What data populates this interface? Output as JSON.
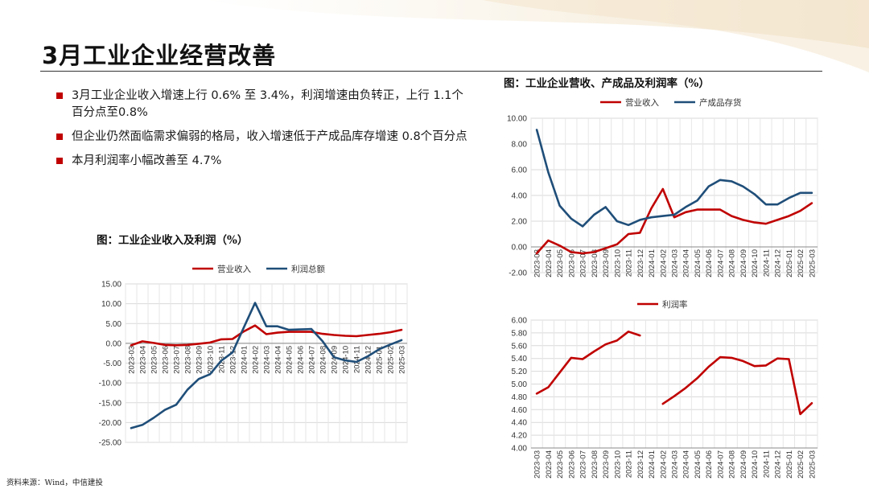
{
  "title": "3月工业企业经营改善",
  "bullets": [
    "3月工业企业收入增速上行 0.6% 至 3.4%，利润增速由负转正，上行 1.1个百分点至0.8%",
    "但企业仍然面临需求偏弱的格局，收入增速低于产成品库存增速 0.8个百分点",
    "本月利润率小幅改善至 4.7%"
  ],
  "source": "资料来源：Wind，中信建投",
  "colors": {
    "red": "#c00000",
    "navy": "#1f4e79",
    "bullet": "#c00000",
    "grid": "#d9d9d9"
  },
  "chart_data": [
    {
      "type": "line",
      "title": "图：工业企业收入及利润（%）",
      "x": [
        "2023-03",
        "2023-04",
        "2023-05",
        "2023-06",
        "2023-07",
        "2023-08",
        "2023-09",
        "2023-10",
        "2023-11",
        "2023-12",
        "2024-01",
        "2024-02",
        "2024-03",
        "2024-04",
        "2024-05",
        "2024-06",
        "2024-07",
        "2024-08",
        "2024-09",
        "2024-10",
        "2024-11",
        "2024-12",
        "2025-01",
        "2025-02",
        "2025-03"
      ],
      "ylim": [
        -25,
        15
      ],
      "yticks": [
        "15.00",
        "10.00",
        "5.00",
        "0.00",
        "-5.00",
        "-10.00",
        "-15.00",
        "-20.00",
        "-25.00"
      ],
      "grid": true,
      "legend": "top",
      "series": [
        {
          "name": "营业收入",
          "color": "#c00000",
          "values": [
            -0.5,
            0.5,
            0.1,
            -0.4,
            -0.5,
            -0.4,
            -0.1,
            0.2,
            1.0,
            1.1,
            3.0,
            4.5,
            2.3,
            2.7,
            2.9,
            2.9,
            2.9,
            2.4,
            2.1,
            1.9,
            1.8,
            2.1,
            2.4,
            2.8,
            3.4
          ]
        },
        {
          "name": "利润总额",
          "color": "#1f4e79",
          "values": [
            -21.4,
            -20.6,
            -18.8,
            -16.8,
            -15.5,
            -11.7,
            -9.0,
            -7.8,
            -4.4,
            -2.3,
            4.0,
            10.2,
            4.3,
            4.3,
            3.4,
            3.5,
            3.6,
            0.5,
            -3.5,
            -4.3,
            -4.7,
            -3.3,
            -1.5,
            -0.3,
            0.8
          ]
        }
      ]
    },
    {
      "type": "line",
      "title": "图：工业企业营收、产成品及利润率（%）",
      "x": [
        "2023-03",
        "2023-04",
        "2023-05",
        "2023-06",
        "2023-07",
        "2023-08",
        "2023-09",
        "2023-10",
        "2023-11",
        "2023-12",
        "2024-01",
        "2024-02",
        "2024-03",
        "2024-04",
        "2024-05",
        "2024-06",
        "2024-07",
        "2024-08",
        "2024-09",
        "2024-10",
        "2024-11",
        "2024-12",
        "2025-01",
        "2025-02",
        "2025-03"
      ],
      "ylim": [
        -2,
        10
      ],
      "yticks": [
        "10.00",
        "8.00",
        "6.00",
        "4.00",
        "2.00",
        "0.00",
        "-2.00"
      ],
      "grid": true,
      "legend": "top",
      "series": [
        {
          "name": "营业收入",
          "color": "#c00000",
          "values": [
            -0.5,
            0.5,
            0.1,
            -0.4,
            -0.5,
            -0.4,
            -0.1,
            0.2,
            1.0,
            1.1,
            3.0,
            4.5,
            2.3,
            2.7,
            2.9,
            2.9,
            2.9,
            2.4,
            2.1,
            1.9,
            1.8,
            2.1,
            2.4,
            2.8,
            3.4
          ]
        },
        {
          "name": "产成品存货",
          "color": "#1f4e79",
          "values": [
            9.1,
            5.8,
            3.2,
            2.2,
            1.6,
            2.5,
            3.1,
            2.0,
            1.7,
            2.1,
            2.3,
            2.4,
            2.5,
            3.1,
            3.6,
            4.7,
            5.2,
            5.1,
            4.7,
            4.1,
            3.3,
            3.3,
            3.8,
            4.2,
            4.2
          ]
        }
      ]
    },
    {
      "type": "line",
      "x": [
        "2023-03",
        "2023-04",
        "2023-05",
        "2023-06",
        "2023-07",
        "2023-08",
        "2023-09",
        "2023-10",
        "2023-11",
        "2023-12",
        "2024-01",
        "2024-02",
        "2024-03",
        "2024-04",
        "2024-05",
        "2024-06",
        "2024-07",
        "2024-08",
        "2024-09",
        "2024-10",
        "2024-11",
        "2024-12",
        "2025-01",
        "2025-02",
        "2025-03"
      ],
      "ylim": [
        4.0,
        6.0
      ],
      "yticks": [
        "6.00",
        "5.80",
        "5.60",
        "5.40",
        "5.20",
        "5.00",
        "4.80",
        "4.60",
        "4.40",
        "4.20",
        "4.00"
      ],
      "grid": true,
      "legend": "top",
      "series": [
        {
          "name": "利润率",
          "color": "#c00000",
          "values": [
            4.85,
            4.95,
            5.18,
            5.41,
            5.39,
            5.51,
            5.62,
            5.68,
            5.82,
            5.76,
            null,
            4.69,
            4.81,
            4.94,
            5.09,
            5.27,
            5.42,
            5.41,
            5.36,
            5.28,
            5.29,
            5.4,
            5.39,
            4.53,
            4.7
          ]
        }
      ]
    }
  ]
}
